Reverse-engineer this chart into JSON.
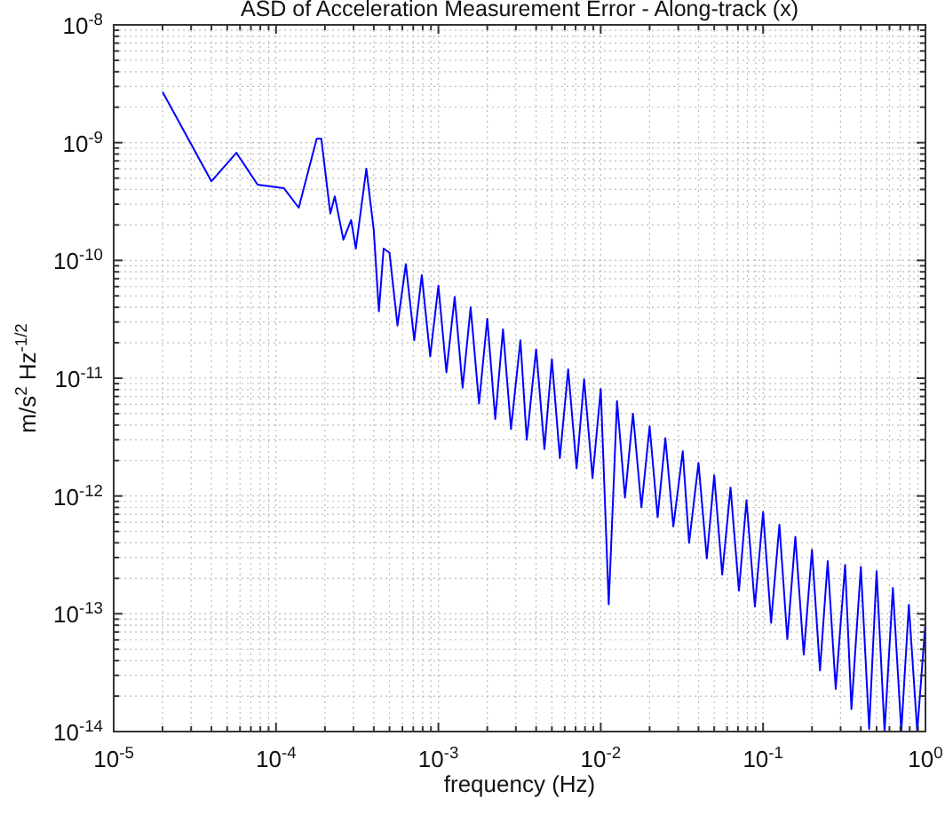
{
  "chart_data": {
    "type": "line",
    "title": "ASD of Acceleration Measurement Error - Along-track (x)",
    "xlabel": "frequency (Hz)",
    "ylabel": "m/s$^{2}$ Hz$^{-1/2}$",
    "log": "xy",
    "grid": true,
    "line_style": "solid",
    "marker": "none",
    "xlim": [
      1e-05,
      1
    ],
    "ylim": [
      1e-14,
      1e-08
    ],
    "xticks": [
      {
        "value": 1e-05,
        "label": "10$^{-5}$"
      },
      {
        "value": 0.0001,
        "label": "10$^{-4}$"
      },
      {
        "value": 0.001,
        "label": "10$^{-3}$"
      },
      {
        "value": 0.01,
        "label": "10$^{-2}$"
      },
      {
        "value": 0.1,
        "label": "10$^{-1}$"
      },
      {
        "value": 1,
        "label": "10$^{0}$"
      }
    ],
    "yticks": [
      {
        "value": 1e-14,
        "label": "10$^{-14}$"
      },
      {
        "value": 1e-13,
        "label": "10$^{-13}$"
      },
      {
        "value": 1e-12,
        "label": "10$^{-12}$"
      },
      {
        "value": 1e-11,
        "label": "10$^{-11}$"
      },
      {
        "value": 1e-10,
        "label": "10$^{-10}$"
      },
      {
        "value": 1e-09,
        "label": "10$^{-9}$"
      },
      {
        "value": 1e-08,
        "label": "10$^{-8}$"
      }
    ],
    "series": [
      {
        "color": "#0000ff",
        "x": [
          2e-05,
          4e-05,
          5.7e-05,
          7.7e-05,
          0.000112,
          0.000138,
          0.000178,
          0.00019,
          0.000216,
          0.00023,
          0.00026,
          0.00029,
          0.00031,
          0.00036,
          0.0004,
          0.00043,
          0.00046,
          0.0005,
          0.00056,
          0.00063,
          0.00071,
          0.00079,
          0.00089,
          0.001,
          0.00112,
          0.00126,
          0.00141,
          0.00158,
          0.00178,
          0.002,
          0.00224,
          0.0025,
          0.0028,
          0.0032,
          0.0035,
          0.004,
          0.0045,
          0.005,
          0.0056,
          0.0063,
          0.0071,
          0.0079,
          0.0089,
          0.01,
          0.0112,
          0.0126,
          0.0141,
          0.0158,
          0.0178,
          0.02,
          0.0224,
          0.025,
          0.028,
          0.032,
          0.035,
          0.04,
          0.045,
          0.05,
          0.056,
          0.063,
          0.071,
          0.079,
          0.089,
          0.1,
          0.112,
          0.126,
          0.141,
          0.158,
          0.178,
          0.2,
          0.224,
          0.25,
          0.28,
          0.32,
          0.35,
          0.4,
          0.45,
          0.5,
          0.56,
          0.63,
          0.71,
          0.79,
          0.89,
          1
        ],
        "values": [
          2.7e-09,
          4.7e-10,
          8.2e-10,
          4.4e-10,
          4.1e-10,
          2.8e-10,
          1.08e-09,
          1.08e-09,
          2.5e-10,
          3.5e-10,
          1.5e-10,
          2.2e-10,
          1.26e-10,
          6e-10,
          1.8e-10,
          3.7e-11,
          1.26e-10,
          1.16e-10,
          2.8e-11,
          9.3e-11,
          2.1e-11,
          7.5e-11,
          1.53e-11,
          6.1e-11,
          1.12e-11,
          4.9e-11,
          8.3e-12,
          4e-11,
          6.1e-12,
          3.2e-11,
          4.5e-12,
          2.6e-11,
          3.7e-12,
          2.1e-11,
          3e-12,
          1.76e-11,
          2.5e-12,
          1.45e-11,
          2.1e-12,
          1.19e-11,
          1.72e-12,
          9.8e-12,
          1.42e-12,
          8.1e-12,
          1.2e-13,
          6.4e-12,
          9.7e-13,
          5e-12,
          8e-13,
          3.9e-12,
          6.6e-13,
          3.1e-12,
          5.5e-13,
          2.4e-12,
          4e-13,
          1.91e-12,
          2.95e-13,
          1.5e-12,
          2.15e-13,
          1.18e-12,
          1.57e-13,
          9.2e-13,
          1.15e-13,
          7.3e-13,
          8.4e-14,
          5.7e-13,
          6.1e-14,
          4.5e-13,
          4.5e-14,
          3.5e-13,
          3.3e-14,
          2.8e-13,
          2.3e-14,
          2.6e-13,
          1.55e-14,
          2.5e-13,
          1.05e-14,
          2.3e-13,
          1e-14,
          1.66e-13,
          1e-14,
          1.19e-13,
          1e-14,
          8.5e-14
        ]
      }
    ]
  }
}
